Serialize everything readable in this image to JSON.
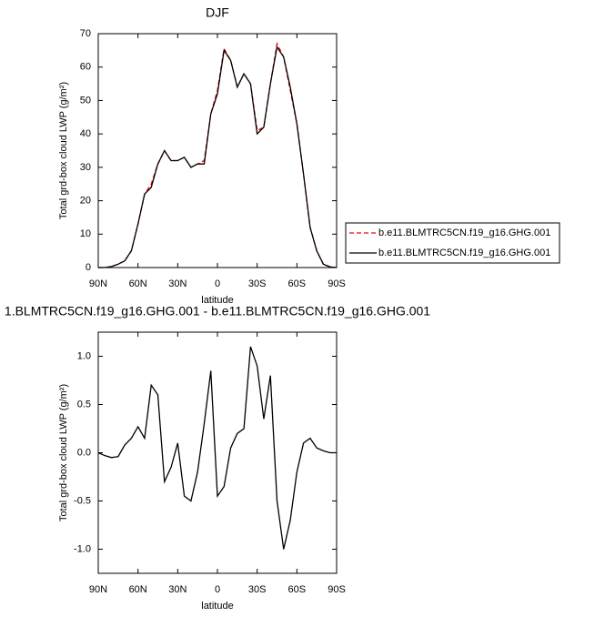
{
  "chart_data": [
    {
      "type": "line",
      "title": "DJF",
      "x_label": "latitude",
      "y_label": "Total grd-box cloud LWP (g/m²)",
      "x": [
        90,
        85,
        80,
        75,
        70,
        65,
        60,
        55,
        50,
        45,
        40,
        35,
        30,
        25,
        20,
        15,
        10,
        5,
        0,
        -5,
        -10,
        -15,
        -20,
        -25,
        -30,
        -35,
        -40,
        -45,
        -50,
        -55,
        -60,
        -65,
        -70,
        -75,
        -80,
        -85,
        -90
      ],
      "series": [
        {
          "name": "b.e11.BLMTRC5CN.f19_g16.GHG.001",
          "color": "#ff0000",
          "dash": true,
          "values": [
            0,
            0,
            0.3,
            1,
            2,
            5,
            13,
            22,
            25,
            31,
            35,
            32,
            32,
            33,
            30,
            31,
            32,
            46,
            53,
            65.5,
            62,
            54,
            58,
            55,
            41,
            42,
            55,
            67,
            63,
            53,
            43,
            28,
            12,
            5,
            1,
            0.2,
            0
          ]
        },
        {
          "name": "b.e11.BLMTRC5CN.f19_g16.GHG.001",
          "color": "#000000",
          "dash": false,
          "values": [
            0,
            0,
            0.3,
            1,
            2,
            5,
            13,
            22,
            24,
            31,
            35,
            32,
            32,
            33,
            30,
            31,
            31,
            46,
            52,
            65,
            62,
            54,
            58,
            55,
            40,
            42,
            55,
            66,
            63,
            54,
            43,
            28,
            12,
            5,
            1,
            0.2,
            0
          ]
        }
      ],
      "xlim": [
        90,
        -90
      ],
      "xticks": [
        {
          "value": 90,
          "label": "90N"
        },
        {
          "value": 60,
          "label": "60N"
        },
        {
          "value": 30,
          "label": "30N"
        },
        0,
        {
          "value": -30,
          "label": "30S"
        },
        {
          "value": -60,
          "label": "60S"
        },
        {
          "value": -90,
          "label": "90S"
        }
      ],
      "ylim": [
        0,
        70
      ],
      "yticks": [
        0,
        10,
        20,
        30,
        40,
        50,
        60,
        70
      ],
      "legend": "right"
    },
    {
      "type": "line",
      "title": "1.BLMTRC5CN.f19_g16.GHG.001 - b.e11.BLMTRC5CN.f19_g16.GHG.001",
      "x_label": "latitude",
      "y_label": "Total grd-box cloud LWP (g/m²)",
      "x": [
        90,
        85,
        80,
        75,
        70,
        65,
        60,
        55,
        50,
        45,
        40,
        35,
        30,
        25,
        20,
        15,
        10,
        5,
        0,
        -5,
        -10,
        -15,
        -20,
        -25,
        -30,
        -35,
        -40,
        -45,
        -50,
        -55,
        -60,
        -65,
        -70,
        -75,
        -80,
        -85,
        -90
      ],
      "series": [
        {
          "color": "#000000",
          "dash": false,
          "values": [
            0,
            -0.03,
            -0.05,
            -0.04,
            0.08,
            0.15,
            0.27,
            0.15,
            0.7,
            0.6,
            -0.3,
            -0.15,
            0.1,
            -0.45,
            -0.5,
            -0.2,
            0.3,
            0.85,
            -0.45,
            -0.35,
            0.05,
            0.2,
            0.25,
            1.1,
            0.9,
            0.35,
            0.8,
            -0.5,
            -1.0,
            -0.7,
            -0.2,
            0.1,
            0.15,
            0.05,
            0.02,
            0,
            0
          ]
        }
      ],
      "xlim": [
        90,
        -90
      ],
      "xticks": [
        {
          "value": 90,
          "label": "90N"
        },
        {
          "value": 60,
          "label": "60N"
        },
        {
          "value": 30,
          "label": "30N"
        },
        0,
        {
          "value": -30,
          "label": "30S"
        },
        {
          "value": -60,
          "label": "60S"
        },
        {
          "value": -90,
          "label": "90S"
        }
      ],
      "ylim": [
        -1.25,
        1.25
      ],
      "yticks": [
        {
          "value": -1,
          "label": "-1.0"
        },
        {
          "value": -0.5,
          "label": "-0.5"
        },
        {
          "value": 0,
          "label": "0.0"
        },
        0.5,
        {
          "value": 1,
          "label": "1.0"
        }
      ]
    }
  ]
}
